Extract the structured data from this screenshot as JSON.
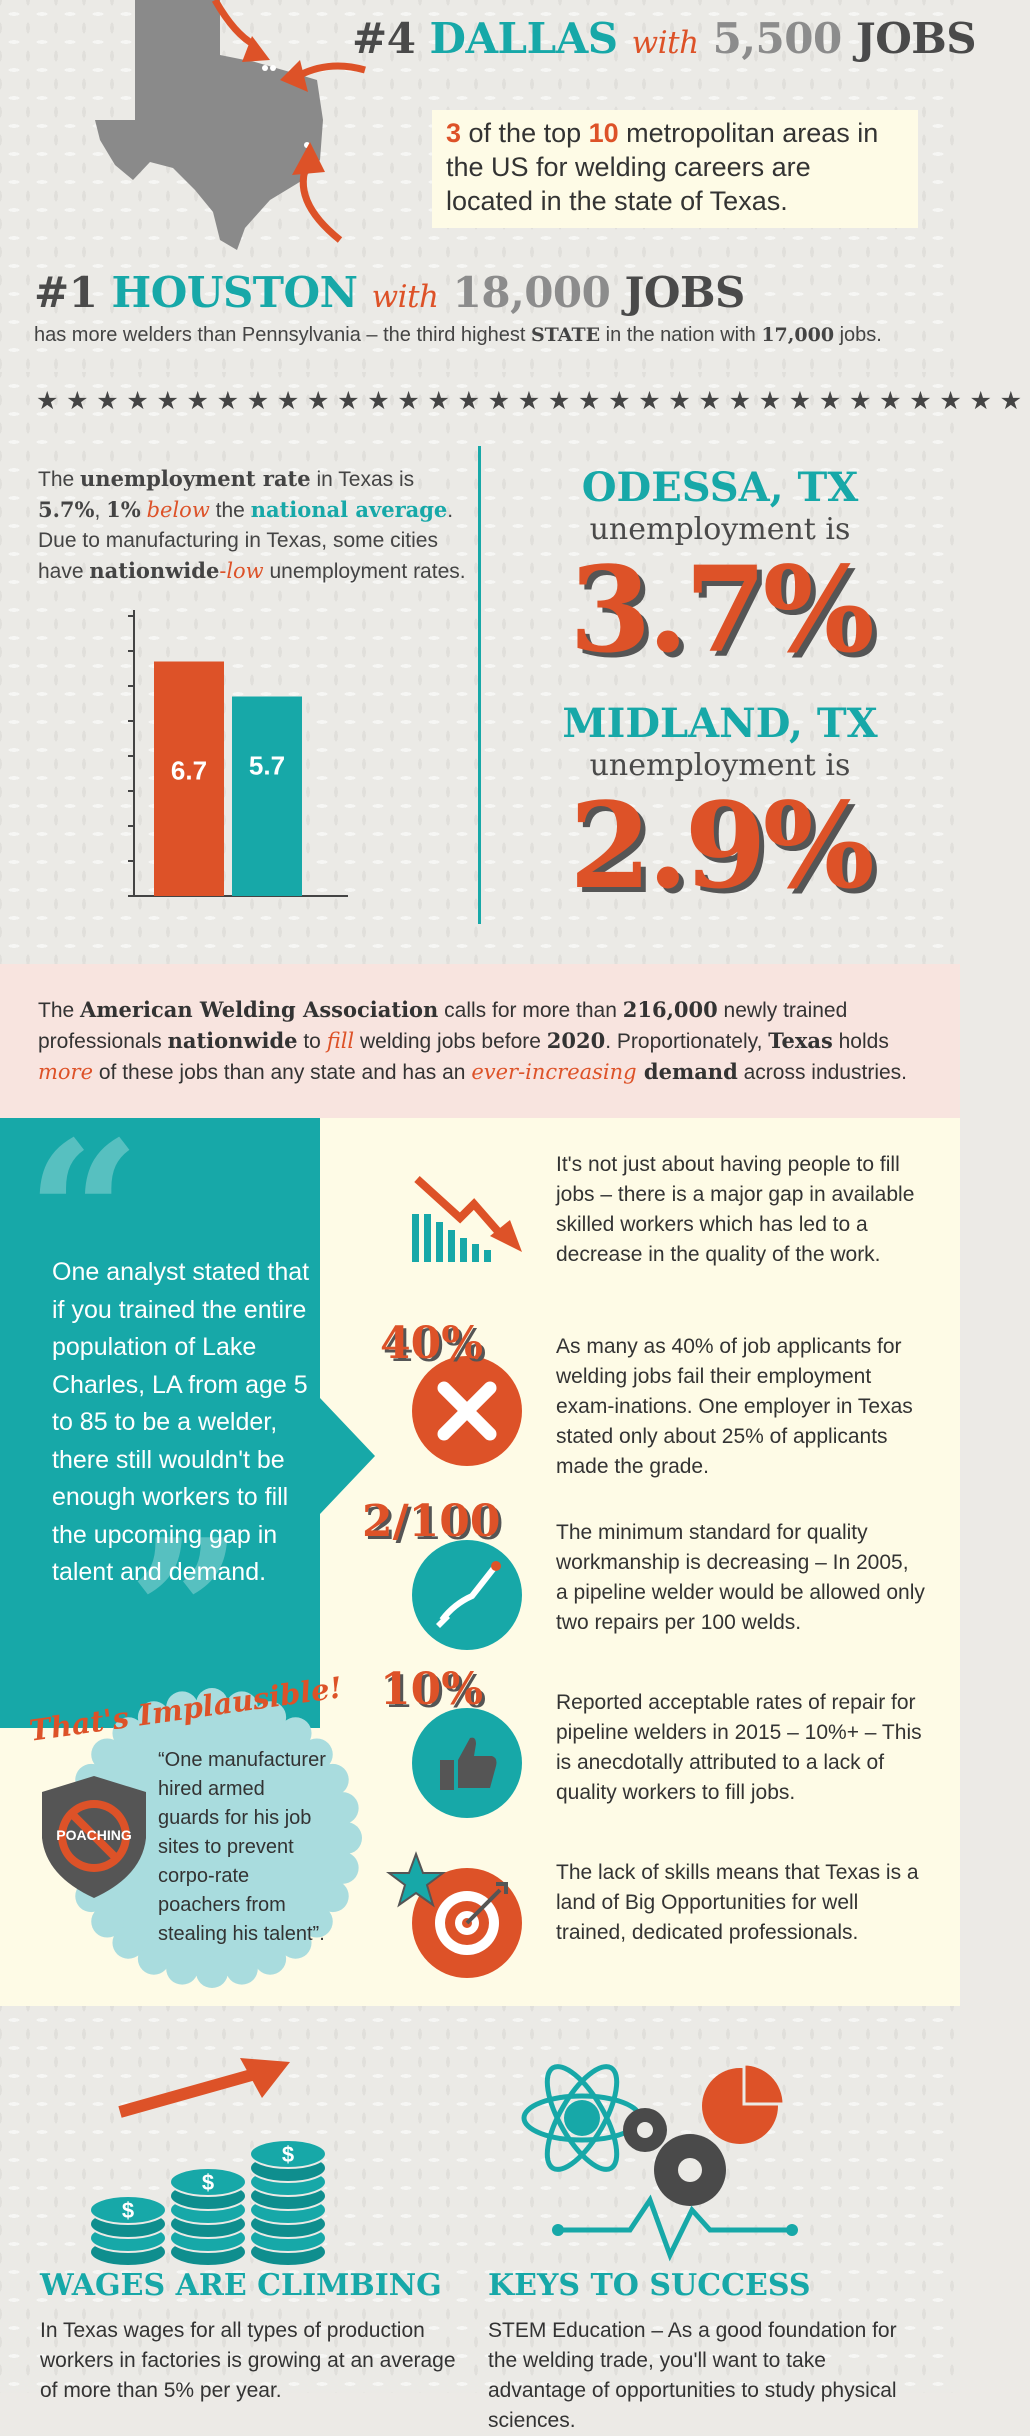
{
  "texas": {
    "dallas": {
      "rank": "#4",
      "city": "DALLAS",
      "with": "with",
      "jobs": "5,500",
      "suffix": "JOBS"
    },
    "callout": {
      "a": "3",
      "b": " of the top ",
      "c": "10",
      "d": " metropolitan areas in the US for welding careers are located in the state of Texas."
    },
    "houston": {
      "rank": "#1",
      "city": "HOUSTON",
      "with": "with",
      "jobs": "18,000",
      "suffix": "JOBS"
    },
    "houston_note": {
      "a": "has more welders than Pennsylvania – the third highest ",
      "b": "STATE",
      "c": " in the nation with ",
      "d": "17,000",
      "e": " jobs."
    }
  },
  "unemployment": {
    "intro": {
      "a": "The ",
      "b": "unemployment rate",
      "c": " in Texas is ",
      "d": "5.7%",
      "e": ", ",
      "f": "1%",
      "g": "below",
      "h": " the ",
      "i": "national average",
      "j": ". Due to manufacturing in Texas, some cities have ",
      "k": "nationwide",
      "l": "-",
      "m": "low",
      "n": " unemployment rates."
    },
    "odessa": {
      "city": "ODESSA, TX",
      "label": "unemployment is",
      "value": "3.7%"
    },
    "midland": {
      "city": "MIDLAND, TX",
      "label": "unemployment is",
      "value": "2.9%"
    }
  },
  "chart_data": {
    "type": "bar",
    "categories": [
      "",
      ""
    ],
    "values": [
      6.7,
      5.7
    ],
    "data_labels": [
      "6.7",
      "5.7"
    ],
    "colors": [
      "#dd5228",
      "#17a8a8"
    ],
    "ylim": [
      0,
      8
    ],
    "title": "",
    "xlabel": "",
    "ylabel": ""
  },
  "awa": {
    "a": "The ",
    "b": "American Welding Association",
    "c": " calls for more than ",
    "d": "216,000",
    "e": " newly trained professionals ",
    "f": "nationwide",
    "g": " to ",
    "h": "fill",
    "i": " welding jobs before ",
    "j": "2020",
    "k": ". Proportionately, ",
    "l": "Texas",
    "m": " holds ",
    "n": "more",
    "o": " of these jobs than any state and has an ",
    "p": "ever-increasing",
    "q": " demand",
    "r": " across industries."
  },
  "quote": {
    "text": "One analyst stated that if you trained the entire population of Lake Charles, LA from age 5 to 85 to be a welder, there still wouldn't be enough workers to fill the upcoming gap in talent and demand."
  },
  "implausible": {
    "title": "That's Implausible!",
    "badge": "POACHING",
    "text": "“One manufacturer hired armed guards for his job sites to prevent corpo-rate poachers from stealing his talent”."
  },
  "facts": [
    {
      "stat": "",
      "icon": "declining-chart-icon",
      "text": "It's not just about having people to fill jobs – there is a major gap in available skilled workers which has led to a decrease in the quality of the work."
    },
    {
      "stat": "40%",
      "icon": "x-icon",
      "text": "As many as 40% of job applicants for welding jobs fail their employment exam-inations. One employer in Texas stated only about 25% of applicants made the grade."
    },
    {
      "stat": "2/100",
      "icon": "welding-torch-icon",
      "text": "The minimum standard for quality workmanship is decreasing – In 2005, a pipeline welder would be allowed only two repairs per 100 welds."
    },
    {
      "stat": "10%",
      "icon": "thumbs-up-icon",
      "text": "Reported acceptable rates of repair for pipeline welders in 2015 – 10%+ – This is anecdotally attributed to a lack of quality workers to fill jobs."
    },
    {
      "stat": "",
      "icon": "target-icon",
      "text": "The lack of skills means that Texas is a land of Big Opportunities for well trained, dedicated professionals."
    }
  ],
  "wages": {
    "title": "WAGES ARE CLIMBING",
    "text": "In Texas wages for all types of production workers in factories is growing at an average of more than 5% per year."
  },
  "keys": {
    "title": "KEYS TO SUCCESS",
    "text": "STEM Education – As a good foundation for the welding trade, you'll want to take advantage of opportunities to study physical sciences."
  }
}
